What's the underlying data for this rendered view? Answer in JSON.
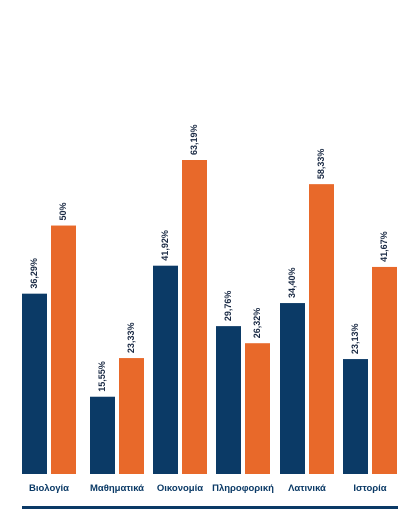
{
  "chart_data": {
    "type": "bar",
    "categories": [
      "Βιολογία",
      "Μαθηματικά",
      "Οικονομία",
      "Πληροφορική",
      "Λατινικά",
      "Ιστορία"
    ],
    "series": [
      {
        "values": [
          36.29,
          15.55,
          41.92,
          29.76,
          34.4,
          23.13
        ],
        "labels": [
          "36,29%",
          "15,55%",
          "41,92%",
          "29,76%",
          "34,40%",
          "23,13%"
        ]
      },
      {
        "values": [
          50,
          23.33,
          63.19,
          26.32,
          58.33,
          41.67
        ],
        "labels": [
          "50%",
          "23,33%",
          "63,19%",
          "26,32%",
          "58,33%",
          "41,67%"
        ]
      }
    ],
    "ylim": [
      0,
      63.19
    ],
    "grid": false,
    "colors": [
      "#0b3a66",
      "#e8692a"
    ],
    "axis_color": "#0b3a66",
    "title": "",
    "xlabel": "",
    "ylabel": ""
  }
}
